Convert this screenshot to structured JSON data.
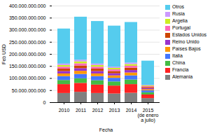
{
  "chart_data": {
    "type": "bar",
    "stacked": true,
    "xlabel": "Fecha",
    "ylabel": "Feb USD",
    "categories": [
      "2010",
      "2011",
      "2012",
      "2013",
      "2014",
      "2015\n(de enero\na julio)"
    ],
    "series": [
      {
        "name": "Alemania",
        "color": "#808080",
        "values": [
          38000000000,
          43000000000,
          38000000000,
          36000000000,
          39000000000,
          17000000000
        ]
      },
      {
        "name": "Francia",
        "color": "#ff2222",
        "values": [
          37000000000,
          37000000000,
          35000000000,
          33000000000,
          36000000000,
          15000000000
        ]
      },
      {
        "name": "China",
        "color": "#44bb44",
        "values": [
          17000000000,
          19000000000,
          18000000000,
          17000000000,
          19000000000,
          9000000000
        ]
      },
      {
        "name": "Italia",
        "color": "#4477ff",
        "values": [
          16000000000,
          18000000000,
          17000000000,
          15000000000,
          17000000000,
          8000000000
        ]
      },
      {
        "name": "Países Bajos",
        "color": "#ff9900",
        "values": [
          11000000000,
          13000000000,
          11000000000,
          10000000000,
          12000000000,
          5000000000
        ]
      },
      {
        "name": "Reino Unido",
        "color": "#9933cc",
        "values": [
          10000000000,
          11000000000,
          10000000000,
          9000000000,
          10000000000,
          4500000000
        ]
      },
      {
        "name": "Estados Unidos",
        "color": "#cc4400",
        "values": [
          10000000000,
          11000000000,
          10000000000,
          9000000000,
          10000000000,
          4500000000
        ]
      },
      {
        "name": "Portugal",
        "color": "#ff66bb",
        "values": [
          8000000000,
          9000000000,
          8000000000,
          7000000000,
          8000000000,
          3500000000
        ]
      },
      {
        "name": "Argelia",
        "color": "#ccee22",
        "values": [
          7000000000,
          8000000000,
          7000000000,
          6000000000,
          7000000000,
          3000000000
        ]
      },
      {
        "name": "Rusia",
        "color": "#cc99ff",
        "values": [
          6000000000,
          7000000000,
          6000000000,
          5000000000,
          6000000000,
          2500000000
        ]
      },
      {
        "name": "Otros",
        "color": "#55ccee",
        "values": [
          145000000000,
          178000000000,
          176000000000,
          170000000000,
          168000000000,
          100000000000
        ]
      }
    ],
    "ylim": [
      0,
      400000000000
    ],
    "yticks": [
      0,
      {
        "value": 50000000000,
        "label": "50.000.000.000"
      },
      {
        "value": 100000000000,
        "label": "100.000.000.000"
      },
      {
        "value": 150000000000,
        "label": "150.000.000.000"
      },
      {
        "value": 200000000000,
        "label": "200.000.000.000"
      },
      {
        "value": 250000000000,
        "label": "250.000.000.000"
      },
      {
        "value": 300000000000,
        "label": "300.000.000.000"
      },
      {
        "value": 350000000000,
        "label": "350.000.000.000"
      },
      {
        "value": 400000000000,
        "label": "400.000.000.000"
      }
    ],
    "grid": true,
    "legend": "right"
  }
}
